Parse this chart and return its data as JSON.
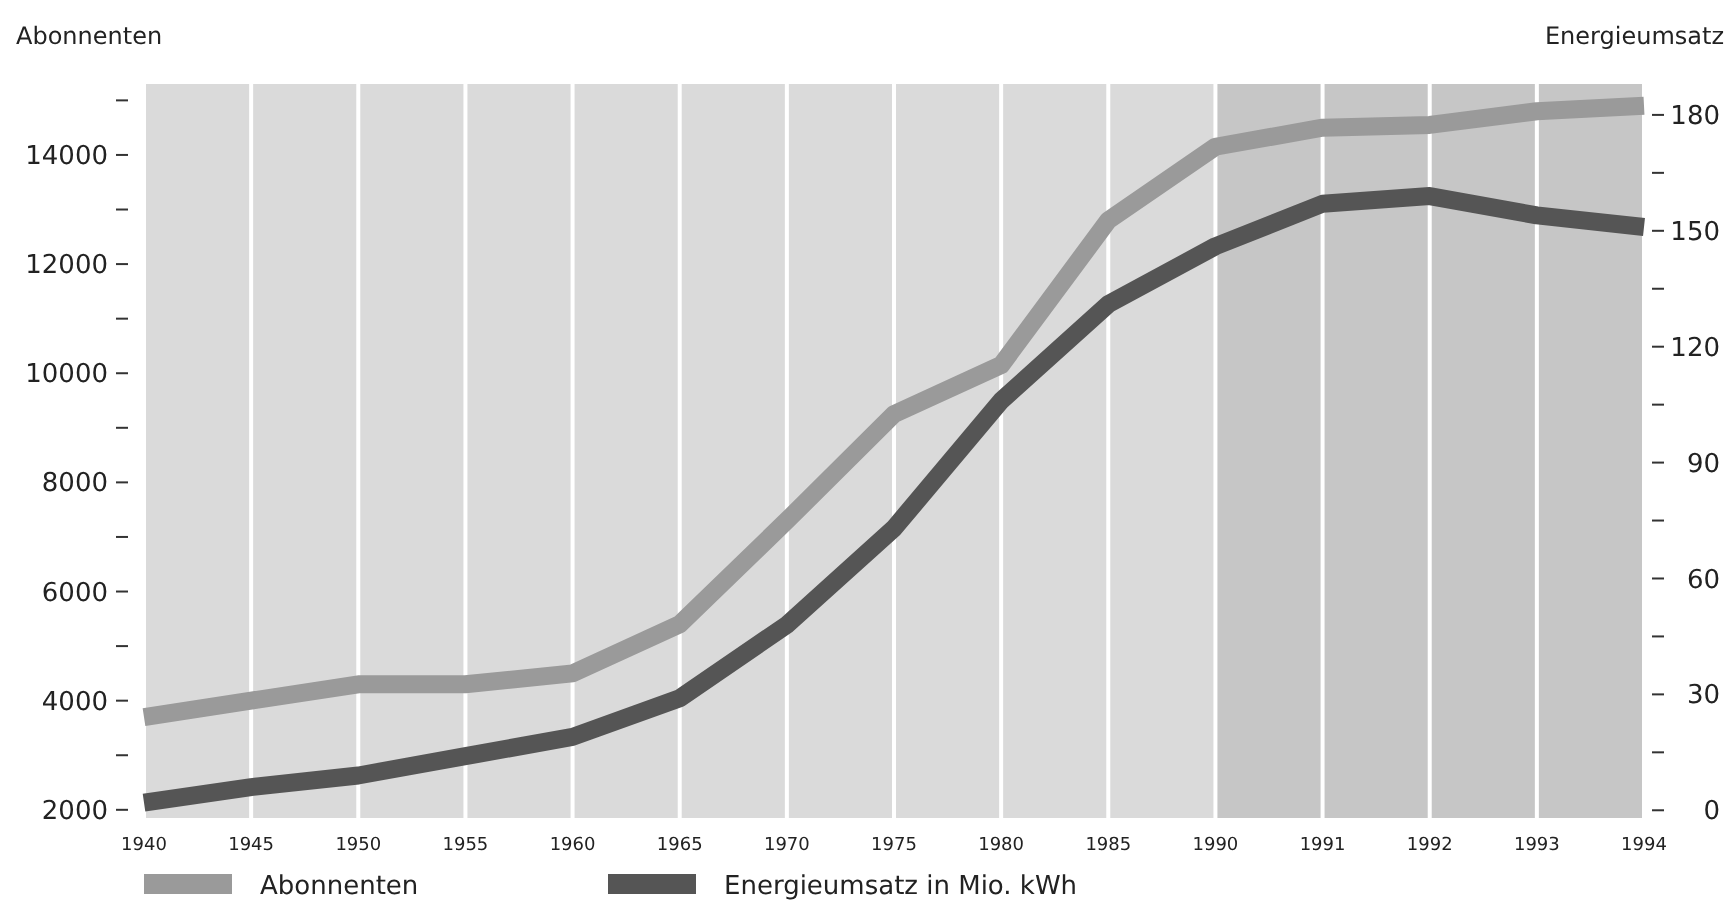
{
  "chart_data": {
    "type": "line",
    "ylabel": "Abonnenten",
    "y2label": "Energieumsatz",
    "categories": [
      "1940",
      "1945",
      "1950",
      "1955",
      "1960",
      "1965",
      "1970",
      "1975",
      "1980",
      "1985",
      "1990",
      "1991",
      "1992",
      "1993",
      "1994"
    ],
    "series": [
      {
        "name": "Abonnenten",
        "color": "#9a9a9a",
        "values": [
          3700,
          4000,
          4300,
          4300,
          4500,
          5400,
          7300,
          9250,
          10150,
          12800,
          14150,
          14500,
          14550,
          14800,
          14900
        ]
      },
      {
        "name": "Energieumsatz in Mio. kWh",
        "color": "#555555",
        "axis": "y2",
        "values": [
          2,
          6,
          9,
          14,
          19,
          29,
          48,
          73,
          106,
          131,
          146,
          157,
          159,
          154,
          151
        ]
      }
    ],
    "ylim": [
      1850,
      15300
    ],
    "yticks": [
      2000,
      {
        "value": 3000,
        "label": null
      },
      4000,
      {
        "value": 5000,
        "label": null
      },
      6000,
      {
        "value": 7000,
        "label": null
      },
      8000,
      {
        "value": 9000,
        "label": null
      },
      10000,
      {
        "value": 11000,
        "label": null
      },
      12000,
      {
        "value": 13000,
        "label": null
      },
      14000,
      {
        "value": 15000,
        "label": null
      }
    ],
    "y2lim": [
      -2,
      188
    ],
    "y2ticks": [
      0,
      {
        "value": 15,
        "label": null
      },
      30,
      {
        "value": 45,
        "label": null
      },
      60,
      {
        "value": 75,
        "label": null
      },
      90,
      {
        "value": 105,
        "label": null
      },
      120,
      {
        "value": 135,
        "label": null
      },
      150,
      {
        "value": 165,
        "label": null
      },
      180
    ],
    "bands": [
      {
        "axis": "x",
        "from": "1990",
        "to": "1994",
        "color": "#c6c6c6"
      }
    ],
    "grid": "x",
    "legend": "bottom left",
    "marker": "none",
    "line_style": "solid"
  }
}
